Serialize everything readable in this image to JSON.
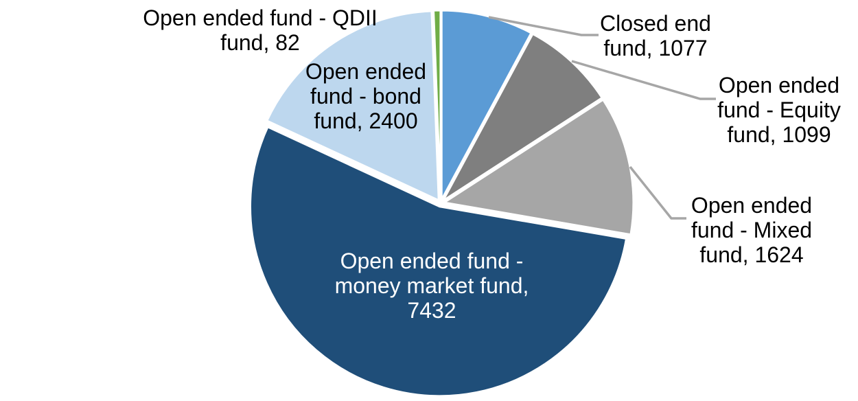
{
  "chart_data": {
    "type": "pie",
    "title": "",
    "start_angle_deg": 0,
    "direction": "clockwise",
    "values_total": 13714,
    "slices": [
      {
        "id": "closed-end-fund",
        "label": "Closed end fund",
        "value": 1077,
        "color": "#5B9BD5"
      },
      {
        "id": "equity-fund",
        "label": "Open ended fund - Equity fund",
        "value": 1099,
        "color": "#7F7F7F"
      },
      {
        "id": "mixed-fund",
        "label": "Open ended fund - Mixed fund",
        "value": 1624,
        "color": "#A6A6A6"
      },
      {
        "id": "money-market-fund",
        "label": "Open ended fund - money market fund",
        "value": 7432,
        "color": "#1F4E79"
      },
      {
        "id": "bond-fund",
        "label": "Open ended fund - bond fund",
        "value": 2400,
        "color": "#BDD7EE"
      },
      {
        "id": "qdii-fund",
        "label": "Open ended fund - QDII fund",
        "value": 82,
        "color": "#70AD47"
      }
    ],
    "labels": {
      "qdii": "Open ended fund - QDII\nfund, 82",
      "bond": "Open ended\nfund - bond\nfund, 2400",
      "closed_end": "Closed end\nfund, 1077",
      "equity": "Open ended\nfund - Equity\nfund, 1099",
      "mixed": "Open ended\nfund - Mixed\nfund, 1624",
      "money_market": "Open ended fund -\nmoney market fund,\n7432"
    },
    "slice_border_color": "#FFFFFF",
    "leader_line_color": "#A6A6A6",
    "label_text_color": "#000000",
    "inner_label_text_color": "#FFFFFF",
    "background": "#FFFFFF",
    "legend": "none"
  }
}
